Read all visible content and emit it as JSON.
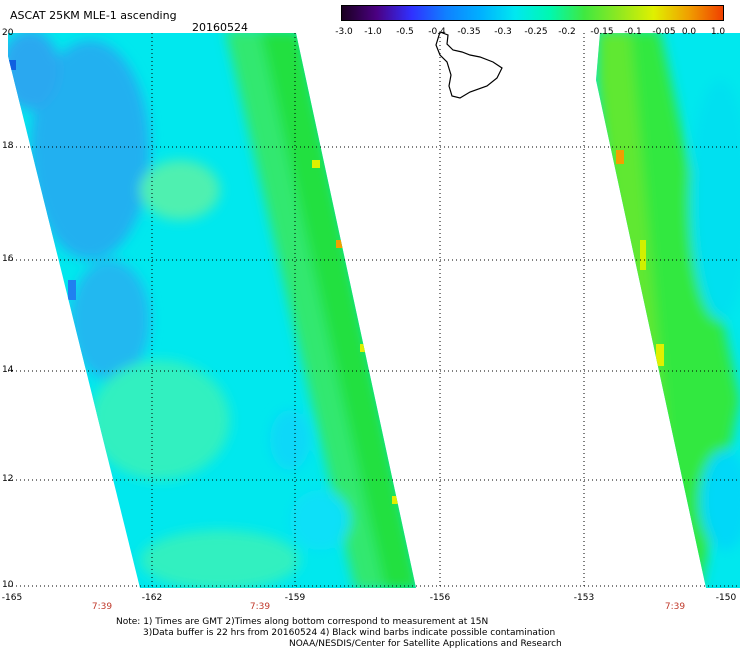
{
  "header": {
    "title": "ASCAT 25KM MLE-1 ascending",
    "date": "20160524"
  },
  "colorbar": {
    "labels": [
      "-3.0",
      "-1.0",
      "-0.5",
      "-0.4",
      "-0.35",
      "-0.3",
      "-0.25",
      "-0.2",
      "-0.15",
      "-0.1",
      "-0.05",
      "0.0",
      "1.0"
    ],
    "colors": [
      "#1a0020",
      "#4b0082",
      "#3030ff",
      "#1080ff",
      "#00b0ff",
      "#00e8f0",
      "#00f8b0",
      "#40e840",
      "#90e820",
      "#e0f000",
      "#f0a000",
      "#f04000"
    ]
  },
  "axes": {
    "lat_labels": [
      "20",
      "18",
      "16",
      "14",
      "12",
      "10"
    ],
    "lon_labels": [
      "-165",
      "-162",
      "-159",
      "-156",
      "-153",
      "-150"
    ],
    "time_labels": [
      "7:39",
      "7:39",
      "7:39"
    ]
  },
  "notes": {
    "line1": "Note: 1) Times are GMT 2)Times along bottom correspond to measurement at 15N",
    "line2": "3)Data buffer is 22 hrs from 20160524 4) Black wind barbs indicate possible contamination",
    "line3": "NOAA/NESDIS/Center for Satellite Applications and Research"
  }
}
